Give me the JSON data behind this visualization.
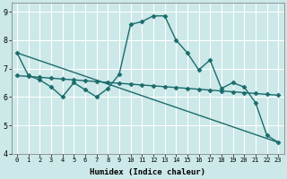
{
  "xlabel": "Humidex (Indice chaleur)",
  "xlim": [
    -0.5,
    23.5
  ],
  "ylim": [
    4,
    9.3
  ],
  "yticks": [
    4,
    5,
    6,
    7,
    8,
    9
  ],
  "xticks": [
    0,
    1,
    2,
    3,
    4,
    5,
    6,
    7,
    8,
    9,
    10,
    11,
    12,
    13,
    14,
    15,
    16,
    17,
    18,
    19,
    20,
    21,
    22,
    23
  ],
  "bg_color": "#cce8e8",
  "grid_color": "#ffffff",
  "line_color": "#1a6b6b",
  "series": [
    {
      "x": [
        0,
        1,
        2,
        3,
        4,
        5,
        6,
        7,
        8,
        9,
        10,
        11,
        12,
        13,
        14,
        15,
        16,
        17,
        18,
        19,
        20,
        21,
        22,
        23
      ],
      "y": [
        7.55,
        6.75,
        6.6,
        6.35,
        6.0,
        6.5,
        6.25,
        6.0,
        6.3,
        6.8,
        8.55,
        8.65,
        8.85,
        8.85,
        8.0,
        7.55,
        6.95,
        7.3,
        6.3,
        6.5,
        6.35,
        5.8,
        4.65,
        4.4
      ],
      "marker": "D",
      "markersize": 2.5,
      "linewidth": 1.0
    },
    {
      "x": [
        0,
        1,
        2,
        3,
        4,
        5,
        6,
        7,
        8,
        9,
        10,
        11,
        12,
        13,
        14,
        15,
        16,
        17,
        18,
        19,
        20,
        21,
        22,
        23
      ],
      "y": [
        6.75,
        6.72,
        6.69,
        6.66,
        6.63,
        6.6,
        6.57,
        6.54,
        6.51,
        6.48,
        6.45,
        6.42,
        6.39,
        6.36,
        6.33,
        6.3,
        6.27,
        6.24,
        6.21,
        6.18,
        6.15,
        6.12,
        6.09,
        6.06
      ],
      "marker": "D",
      "markersize": 2.5,
      "linewidth": 1.0
    },
    {
      "x": [
        0,
        23
      ],
      "y": [
        7.55,
        4.4
      ],
      "marker": null,
      "markersize": 0,
      "linewidth": 1.0
    }
  ]
}
